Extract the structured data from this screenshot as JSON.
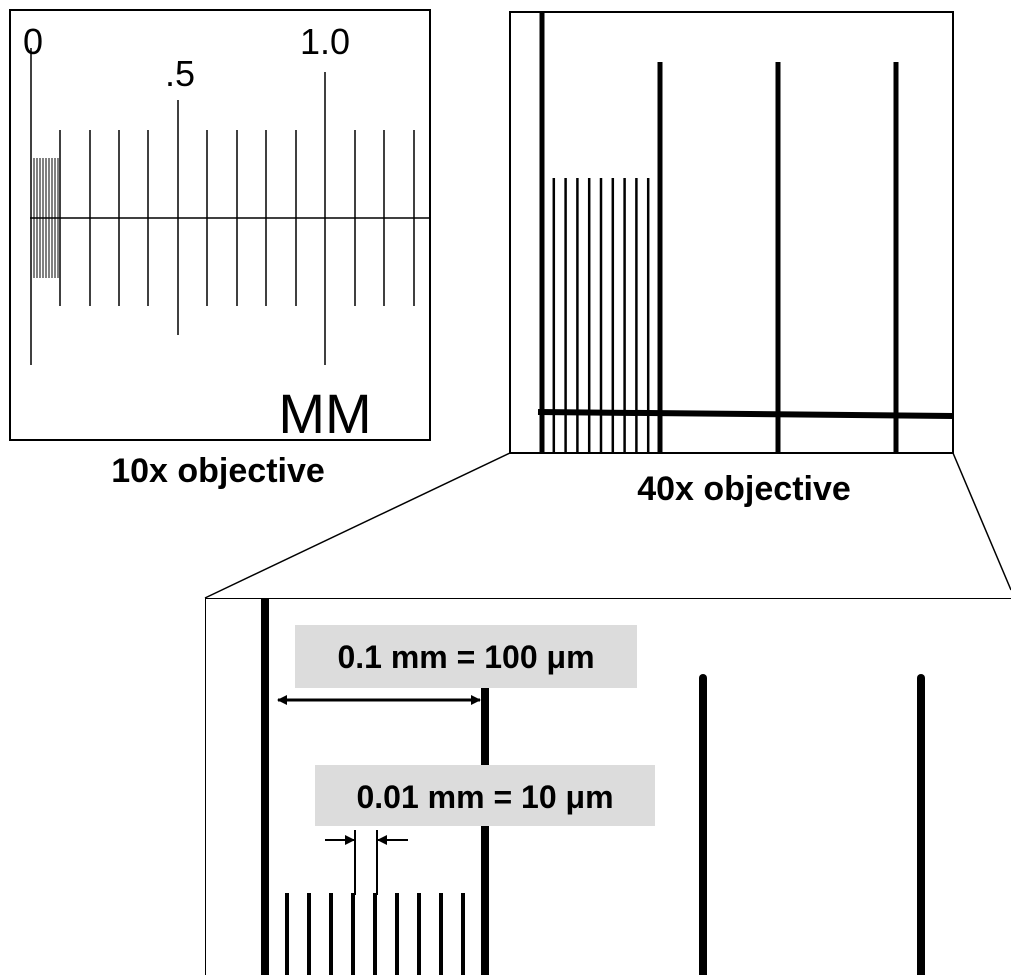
{
  "panels": [
    {
      "scale_labels": [
        "0",
        ".5",
        "1.0"
      ],
      "unit": "MM",
      "caption": "10x objective"
    },
    {
      "caption": "40x objective"
    },
    {
      "annotations": [
        "0.1 mm = 100 μm",
        "0.01 mm = 10 μm"
      ]
    }
  ]
}
